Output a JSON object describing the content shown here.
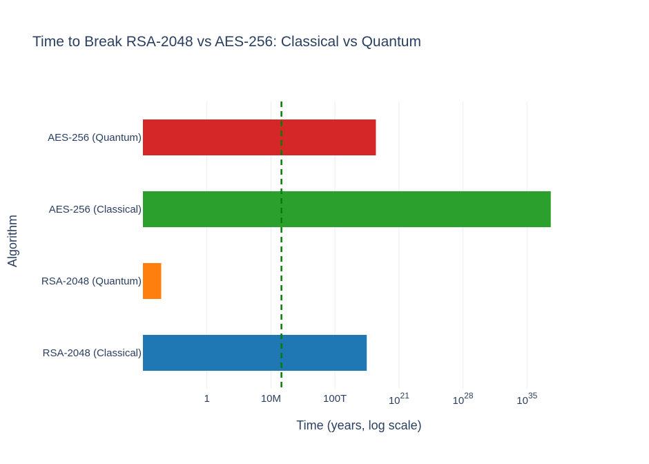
{
  "chart_data": {
    "type": "bar",
    "orientation": "horizontal",
    "title": "Time to Break RSA-2048 vs AES-256: Classical vs Quantum",
    "xlabel": "Time (years, log scale)",
    "ylabel": "Algorithm",
    "x_scale": "log",
    "xlim": [
      1e-07,
      1e+42
    ],
    "x_ticks": [
      {
        "value": 1,
        "label": "1",
        "base": "",
        "exp": ""
      },
      {
        "value": 10000000.0,
        "label": "10M",
        "base": "",
        "exp": ""
      },
      {
        "value": 100000000000000.0,
        "label": "100T",
        "base": "",
        "exp": ""
      },
      {
        "value": 1e+21,
        "label": "",
        "base": "10",
        "exp": "21"
      },
      {
        "value": 1e+28,
        "label": "",
        "base": "10",
        "exp": "28"
      },
      {
        "value": 1e+35,
        "label": "",
        "base": "10",
        "exp": "35"
      }
    ],
    "categories": [
      "RSA-2048 (Classical)",
      "RSA-2048 (Quantum)",
      "AES-256 (Classical)",
      "AES-256 (Quantum)"
    ],
    "values": [
      3e+17,
      1e-05,
      4e+37,
      3e+18
    ],
    "colors": [
      "#1f77b4",
      "#ff7f0e",
      "#2ca02c",
      "#d62728"
    ],
    "reference_line": {
      "value": 140000000,
      "color": "#008000",
      "style": "dashed"
    },
    "grid": "vertical"
  }
}
